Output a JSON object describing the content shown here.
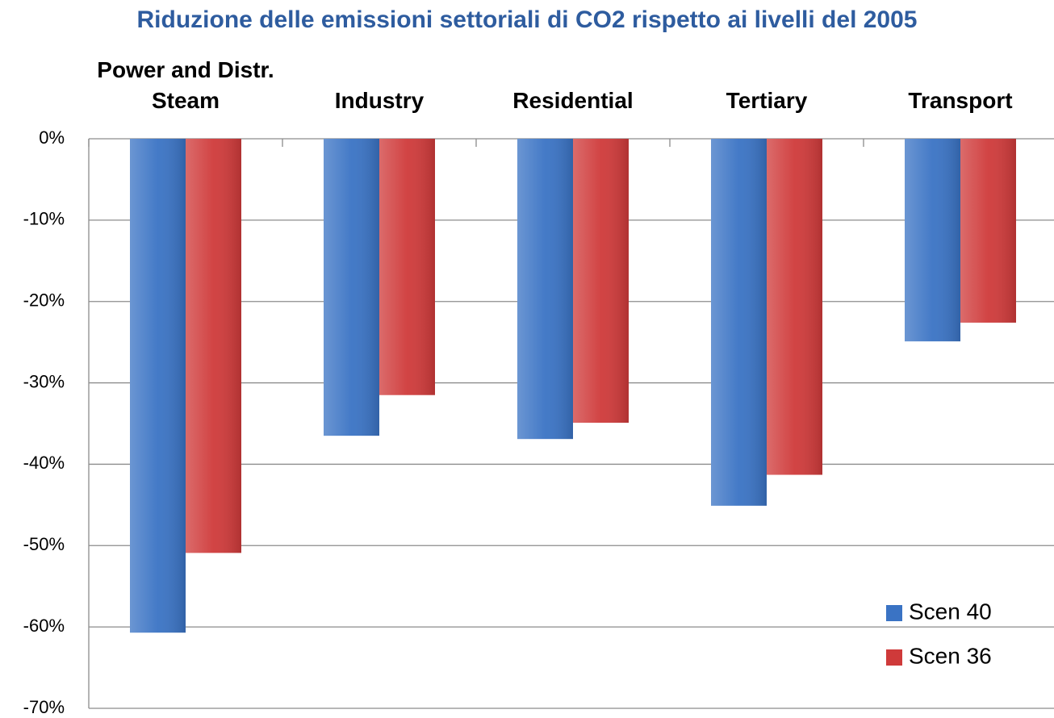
{
  "chart_data": {
    "type": "bar",
    "title": "Riduzione delle emissioni settoriali di CO2 rispetto ai livelli del 2005",
    "categories": [
      "Power and Distr. Steam",
      "Industry",
      "Residential",
      "Tertiary",
      "Transport"
    ],
    "series": [
      {
        "name": "Scen 40",
        "color": "#3a73c4",
        "values": [
          -60.7,
          -36.5,
          -36.9,
          -45.1,
          -24.9
        ]
      },
      {
        "name": "Scen 36",
        "color": "#cf3a3a",
        "values": [
          -50.9,
          -31.5,
          -34.9,
          -41.3,
          -22.6
        ]
      }
    ],
    "ylim": [
      -70,
      0
    ],
    "yticks": [
      {
        "value": 0,
        "label": "0%"
      },
      {
        "value": -10,
        "label": "-10%"
      },
      {
        "value": -20,
        "label": "-20%"
      },
      {
        "value": -30,
        "label": "-30%"
      },
      {
        "value": -40,
        "label": "-40%"
      },
      {
        "value": -50,
        "label": "-50%"
      },
      {
        "value": -60,
        "label": "-60%"
      },
      {
        "value": -70,
        "label": "-70%"
      }
    ],
    "grid": true,
    "legend": "lower right"
  }
}
